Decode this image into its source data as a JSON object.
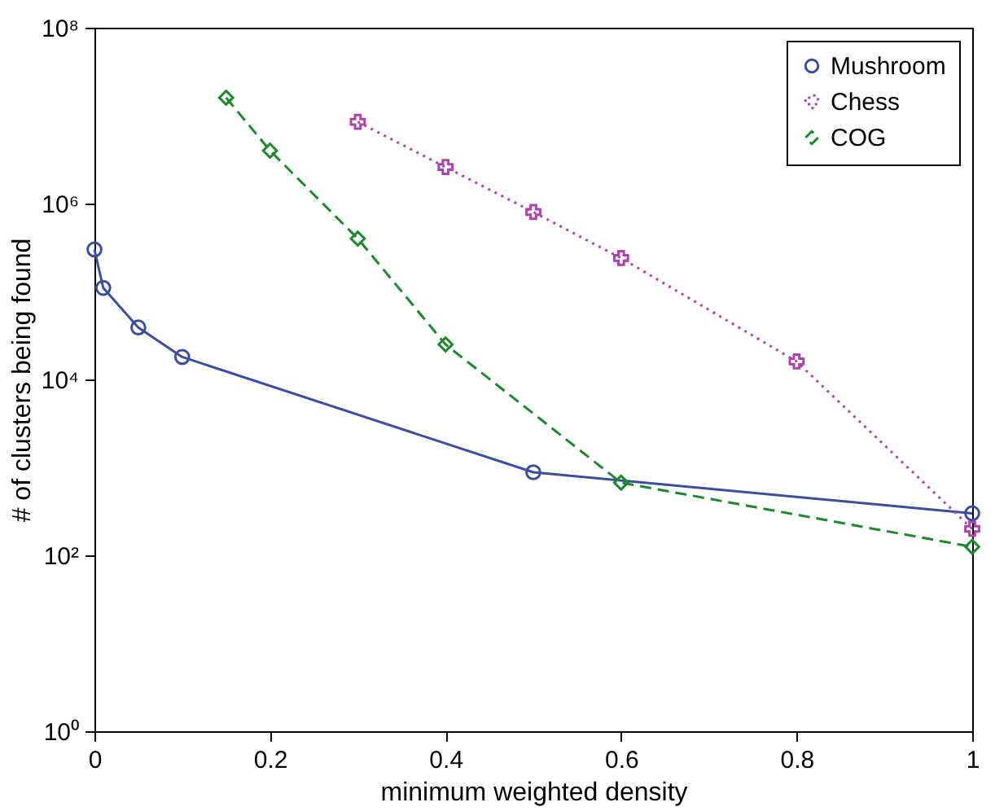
{
  "chart_data": {
    "type": "line",
    "xlabel": "minimum weighted density",
    "ylabel": "# of clusters being found",
    "log": "y",
    "grid": false,
    "legend": "top right",
    "xlim": [
      0,
      1
    ],
    "xticks": [
      0,
      0.2,
      0.4,
      0.6,
      0.8,
      1
    ],
    "ylim": [
      1,
      100000000
    ],
    "yticks": [
      {
        "value": 1,
        "label": "10⁰"
      },
      {
        "value": 100,
        "label": "10²"
      },
      {
        "value": 10000,
        "label": "10⁴"
      },
      {
        "value": 1000000,
        "label": "10⁶"
      },
      {
        "value": 100000000,
        "label": "10⁸"
      }
    ],
    "series": [
      {
        "name": "Mushroom",
        "color": "#3a4ea0",
        "marker": "circle",
        "line_style": "solid",
        "x": [
          0,
          0.01,
          0.05,
          0.1,
          0.5,
          1
        ],
        "values": [
          300000,
          110000,
          39000,
          18000,
          880,
          300
        ]
      },
      {
        "name": "Chess",
        "color": "#b040b0",
        "marker": "cross",
        "line_style": "dotted",
        "x": [
          0.3,
          0.4,
          0.5,
          0.6,
          0.8,
          1
        ],
        "values": [
          8500000,
          2600000,
          800000,
          240000,
          16000,
          200
        ]
      },
      {
        "name": "COG",
        "color": "#1a8a2a",
        "marker": "diamond",
        "line_style": "dashed",
        "x": [
          0.15,
          0.2,
          0.3,
          0.4,
          0.6,
          1
        ],
        "values": [
          16000000,
          4000000,
          400000,
          25000,
          670,
          125
        ]
      }
    ]
  }
}
